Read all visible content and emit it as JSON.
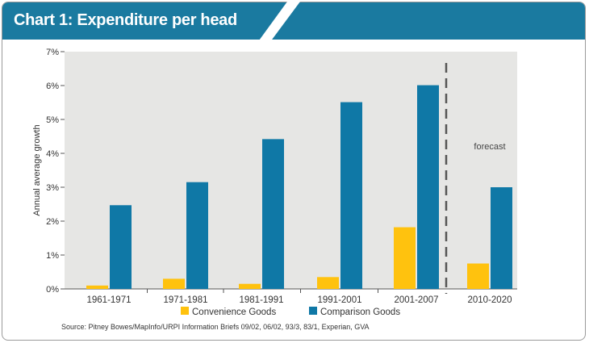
{
  "header": {
    "title": "Chart 1: Expenditure per head"
  },
  "chart_data": {
    "type": "bar",
    "ylabel": "Annual average growth",
    "ylim": [
      0,
      7
    ],
    "yticks": [
      0,
      1,
      2,
      3,
      4,
      5,
      6,
      7
    ],
    "ytick_suffix": "%",
    "categories": [
      "1961-1971",
      "1971-1981",
      "1981-1991",
      "1991-2001",
      "2001-2007",
      "2010-2020"
    ],
    "series": [
      {
        "name": "Convenience Goods",
        "color": "#ffc20e",
        "values": [
          0.1,
          0.3,
          0.15,
          0.35,
          1.82,
          0.75
        ]
      },
      {
        "name": "Comparison Goods",
        "color": "#0f78a6",
        "values": [
          2.47,
          3.15,
          4.42,
          5.51,
          6.01,
          3.0
        ]
      }
    ],
    "annotation": "forecast",
    "forecast_start_category": "2010-2020",
    "grid": false,
    "plot_background": "#e6e6e4",
    "legend_position": "bottom",
    "source": "Source: Pitney Bowes/MapInfo/URPI Information Briefs 09/02, 06/02, 93/3, 83/1, Experian, GVA"
  }
}
